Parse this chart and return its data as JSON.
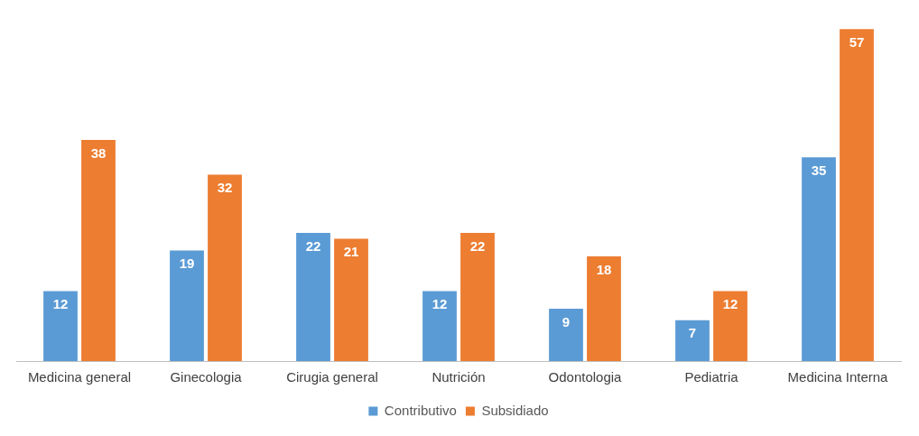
{
  "chart_data": {
    "type": "bar",
    "categories": [
      "Medicina general",
      "Ginecologia",
      "Cirugia general",
      "Nutrición",
      "Odontologia",
      "Pediatria",
      "Medicina Interna"
    ],
    "series": [
      {
        "name": "Contributivo",
        "color": "#5b9bd5",
        "values": [
          12,
          19,
          22,
          12,
          9,
          7,
          35
        ]
      },
      {
        "name": "Subsidiado",
        "color": "#ed7d31",
        "values": [
          38,
          32,
          21,
          22,
          18,
          12,
          57
        ]
      }
    ],
    "data_labels": true,
    "grid": false,
    "legend": "bottom"
  }
}
